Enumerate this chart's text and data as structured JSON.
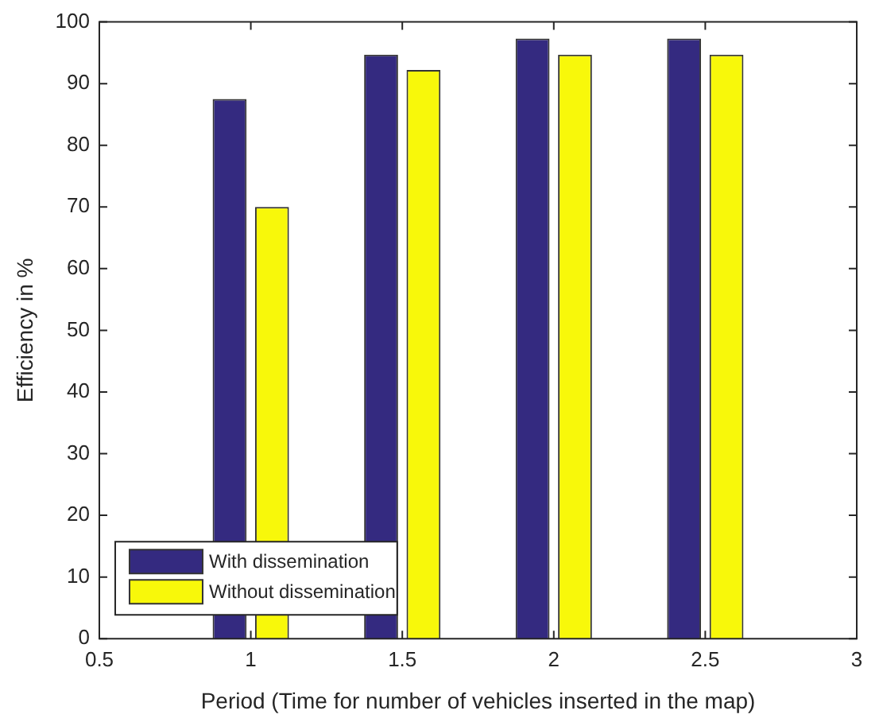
{
  "chart_data": {
    "type": "bar",
    "xlabel": "Period (Time for number of vehicles inserted in the map)",
    "ylabel": "Efficiency in %",
    "x": [
      1,
      1.5,
      2,
      2.5
    ],
    "series": [
      {
        "name": "With dissemination",
        "color": "#342a80",
        "values": [
          87.5,
          94.7,
          97.3,
          97.3
        ]
      },
      {
        "name": "Without dissemination",
        "color": "#f8f80a",
        "values": [
          70,
          92.2,
          94.7,
          94.7
        ]
      }
    ],
    "xlim": [
      0.5,
      3
    ],
    "xticks": [
      0.5,
      1,
      1.5,
      2,
      2.5,
      3
    ],
    "ylim": [
      0,
      100
    ],
    "yticks": [
      0,
      10,
      20,
      30,
      40,
      50,
      60,
      70,
      80,
      90,
      100
    ],
    "grid": false,
    "legend": "bottom left"
  }
}
